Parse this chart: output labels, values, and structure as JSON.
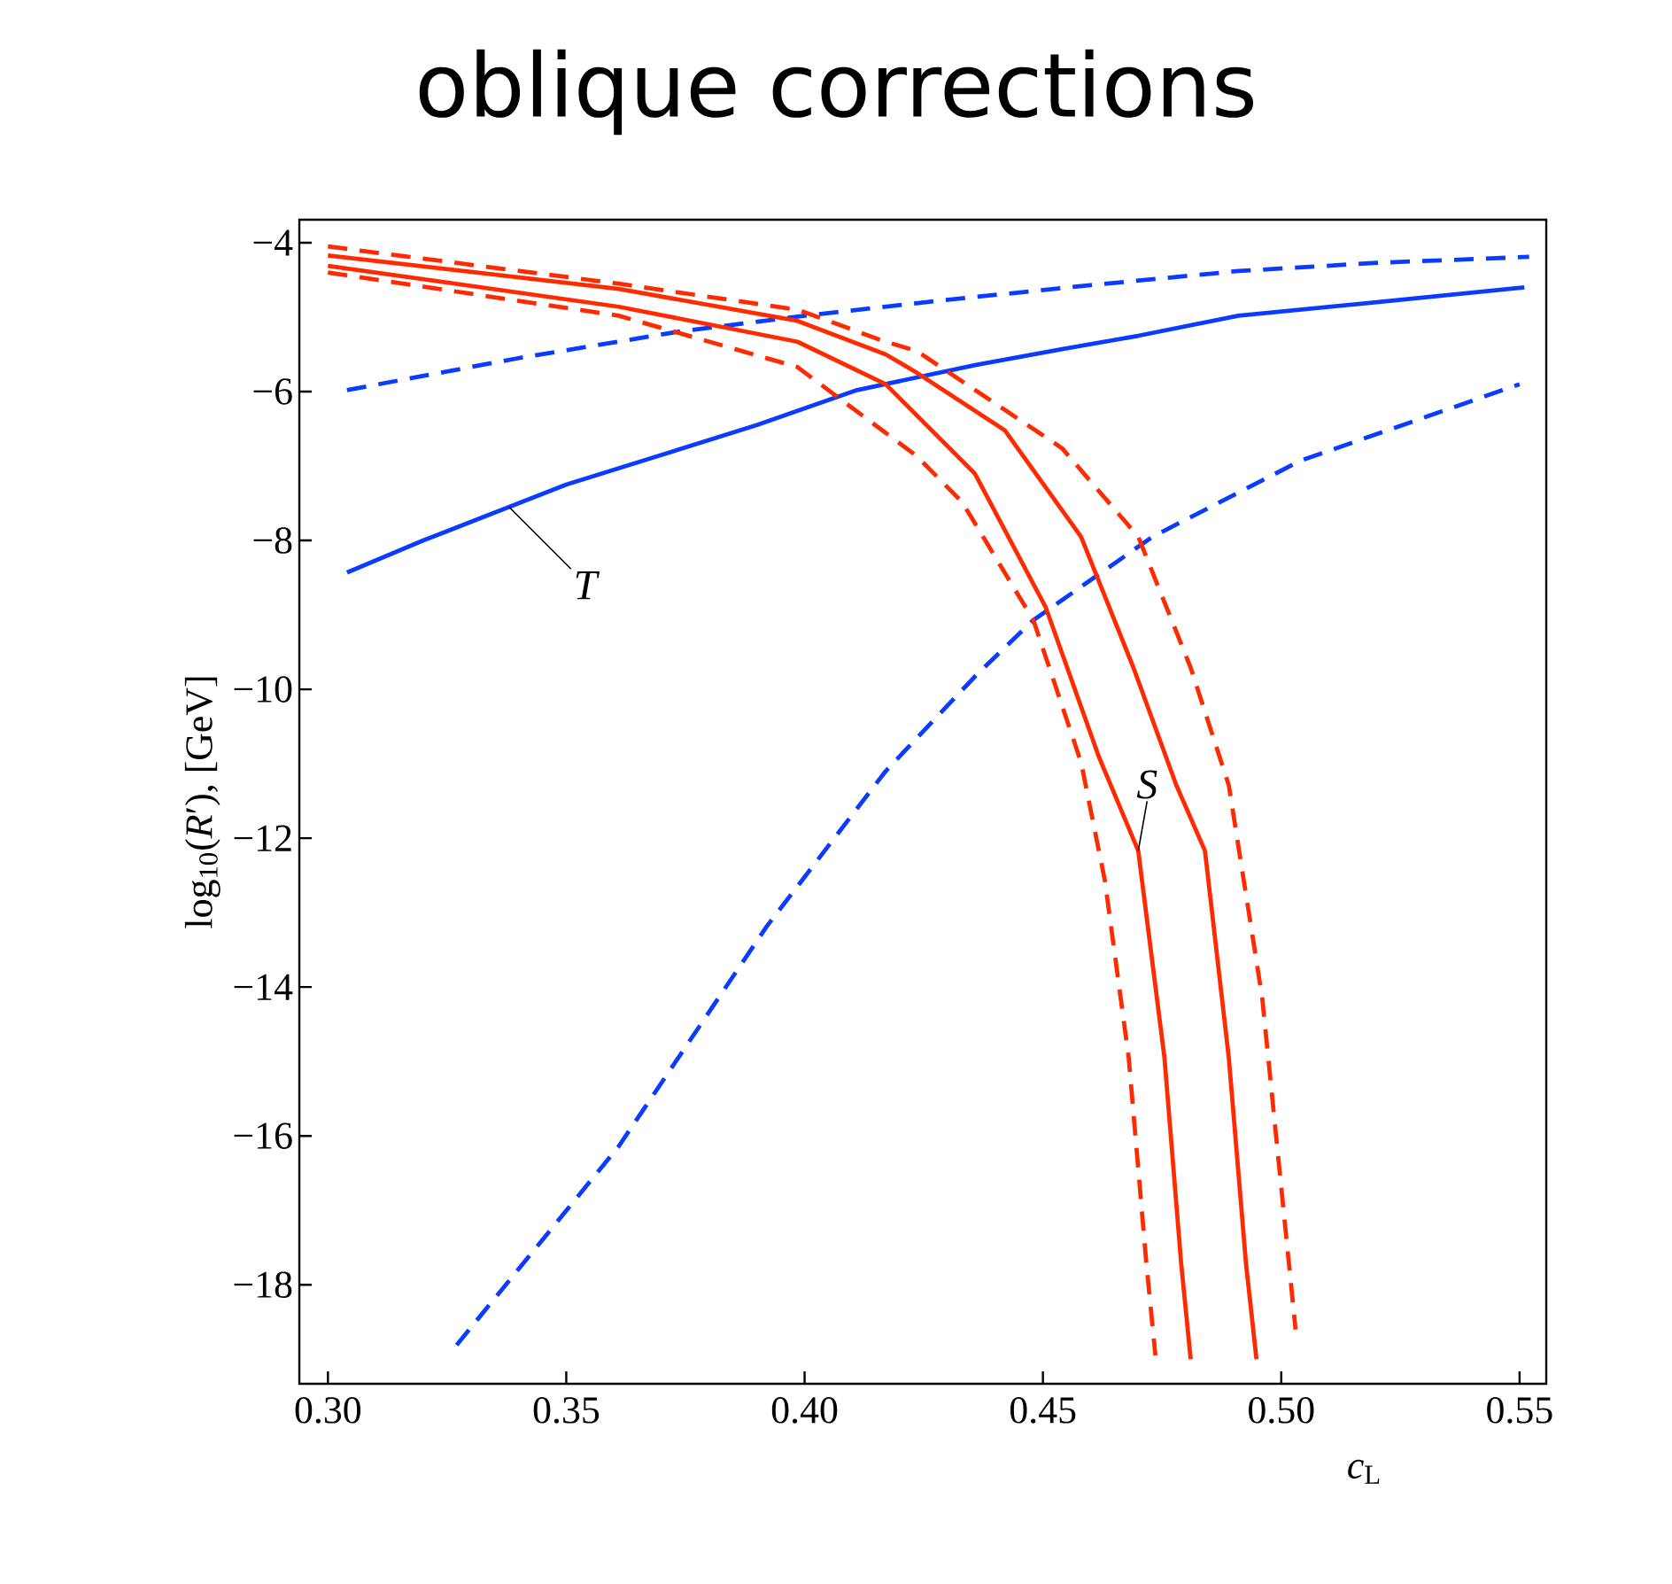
{
  "chart_data": {
    "type": "line",
    "title": "oblique corrections",
    "xlabel": "*c*$_{L}$",
    "ylabel": "log$_{10}$(*R*′), [GeV]",
    "xlim": [
      0.294,
      0.5556
    ],
    "ylim": [
      -19.33,
      -3.69
    ],
    "xticks": [
      {
        "value": 0.3,
        "label": "0.30"
      },
      {
        "value": 0.35,
        "label": "0.35"
      },
      {
        "value": 0.4,
        "label": "0.40"
      },
      {
        "value": 0.45,
        "label": "0.45"
      },
      {
        "value": 0.5,
        "label": "0.50"
      },
      {
        "value": 0.55,
        "label": "0.55"
      }
    ],
    "yticks": [
      {
        "value": -4,
        "label": "−4"
      },
      {
        "value": -6,
        "label": "−6"
      },
      {
        "value": -8,
        "label": "−8"
      },
      {
        "value": -10,
        "label": "−10"
      },
      {
        "value": -12,
        "label": "−12"
      },
      {
        "value": -14,
        "label": "−14"
      },
      {
        "value": -16,
        "label": "−16"
      },
      {
        "value": -18,
        "label": "−18"
      }
    ],
    "series": [
      {
        "color": "#0a3cff",
        "line_style": "solid",
        "x": [
          0.304,
          0.32,
          0.338,
          0.35,
          0.37,
          0.39,
          0.411,
          0.436,
          0.454,
          0.47,
          0.491,
          0.52,
          0.551
        ],
        "values": [
          -8.43,
          -8.0,
          -7.55,
          -7.25,
          -6.85,
          -6.45,
          -5.98,
          -5.64,
          -5.43,
          -5.25,
          -4.98,
          -4.8,
          -4.6
        ]
      },
      {
        "color": "#0a3cff",
        "line_style": "dashed",
        "x": [
          0.304,
          0.34,
          0.374,
          0.4,
          0.431,
          0.46,
          0.491,
          0.52,
          0.552
        ],
        "values": [
          -5.98,
          -5.55,
          -5.19,
          -4.98,
          -4.76,
          -4.57,
          -4.38,
          -4.27,
          -4.19
        ]
      },
      {
        "color": "#0a3cff",
        "line_style": "dashed",
        "x": [
          0.327,
          0.361,
          0.392,
          0.417,
          0.436,
          0.448,
          0.473,
          0.504,
          0.55
        ],
        "values": [
          -18.81,
          -16.14,
          -13.19,
          -11.1,
          -9.81,
          -9.07,
          -7.95,
          -6.93,
          -5.9
        ]
      },
      {
        "color": "#ff2a00",
        "line_style": "dashed",
        "x": [
          0.3,
          0.361,
          0.3985,
          0.417,
          0.4234,
          0.454,
          0.47,
          0.481,
          0.489,
          0.496,
          0.503
        ],
        "values": [
          -4.05,
          -4.55,
          -4.9,
          -5.33,
          -5.45,
          -6.76,
          -7.95,
          -9.71,
          -11.29,
          -14.14,
          -18.6
        ]
      },
      {
        "color": "#ff2a00",
        "line_style": "solid",
        "x": [
          0.3,
          0.361,
          0.3985,
          0.417,
          0.4234,
          0.442,
          0.458,
          0.469,
          0.478,
          0.484,
          0.489,
          0.4926,
          0.4948
        ],
        "values": [
          -4.17,
          -4.62,
          -5.05,
          -5.5,
          -5.74,
          -6.52,
          -7.95,
          -9.71,
          -11.29,
          -12.17,
          -14.95,
          -17.71,
          -19.0
        ]
      },
      {
        "color": "#ff2a00",
        "line_style": "solid",
        "x": [
          0.3,
          0.361,
          0.3985,
          0.417,
          0.4357,
          0.4506,
          0.4617,
          0.47,
          0.4755,
          0.479,
          0.481
        ],
        "values": [
          -4.31,
          -4.86,
          -5.33,
          -5.9,
          -7.1,
          -8.9,
          -10.9,
          -12.17,
          -14.95,
          -17.71,
          -19.0
        ]
      },
      {
        "color": "#ff2a00",
        "line_style": "dashed",
        "x": [
          0.3,
          0.361,
          0.3985,
          0.4234,
          0.433,
          0.448,
          0.458,
          0.463,
          0.468,
          0.4717,
          0.4736
        ],
        "values": [
          -4.4,
          -4.98,
          -5.67,
          -6.86,
          -7.48,
          -9.07,
          -10.98,
          -12.57,
          -14.95,
          -17.71,
          -18.95
        ]
      }
    ],
    "annotations": [
      {
        "text": "*T*",
        "x": 0.338,
        "y": -7.55
      },
      {
        "text": "*S*",
        "x": 0.47,
        "y": -12.17
      }
    ]
  }
}
